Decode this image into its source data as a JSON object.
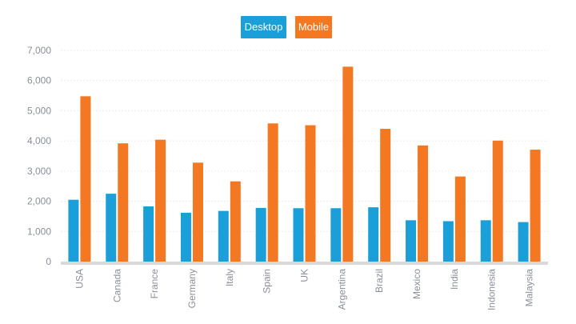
{
  "chart_data": {
    "type": "bar",
    "categories": [
      "USA",
      "Canada",
      "France",
      "Germany",
      "Italy",
      "Spain",
      "UK",
      "Argentina",
      "Brazil",
      "Mexico",
      "India",
      "Indonesia",
      "Malaysia"
    ],
    "series": [
      {
        "name": "Desktop",
        "values": [
          2050,
          2250,
          1830,
          1620,
          1680,
          1780,
          1770,
          1770,
          1800,
          1370,
          1340,
          1370,
          1310
        ]
      },
      {
        "name": "Mobile",
        "values": [
          5480,
          3920,
          4040,
          3280,
          2660,
          4580,
          4520,
          6460,
          4400,
          3850,
          2820,
          4010,
          3710
        ]
      }
    ],
    "y_ticks": [
      "0",
      "1,000",
      "2,000",
      "3,000",
      "4,000",
      "5,000",
      "6,000",
      "7,000"
    ],
    "ylim": [
      0,
      7000
    ],
    "grid": true,
    "legend_position": "top-center",
    "title": "",
    "xlabel": "",
    "ylabel": ""
  },
  "colors": {
    "desktop": "#1a9fd9",
    "mobile": "#f47721",
    "axis": "#d9d9d9",
    "grid": "#ececec",
    "tick_text": "#8a8f98"
  }
}
